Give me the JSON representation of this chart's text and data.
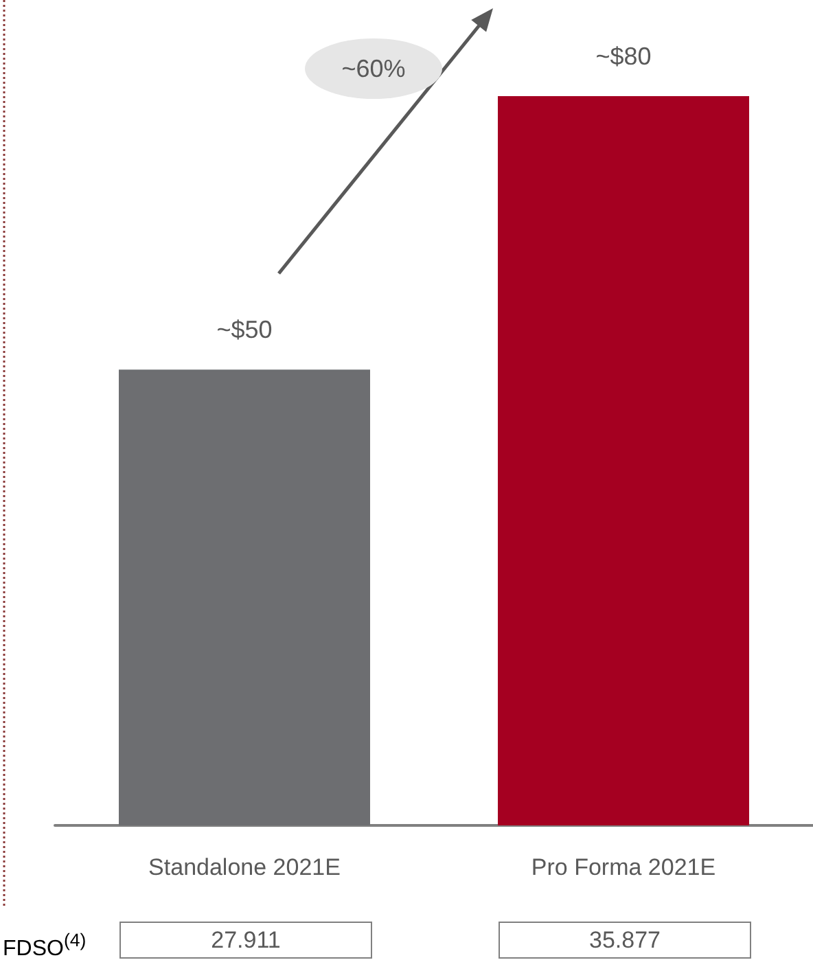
{
  "chart_data": {
    "type": "bar",
    "categories": [
      "Standalone 2021E",
      "Pro Forma 2021E"
    ],
    "values": [
      50,
      80
    ],
    "colors": [
      "#6d6e71",
      "#a50021"
    ],
    "value_labels": [
      "~$50",
      "~$80"
    ],
    "annotations": [
      "~60%",
      "FDSO$^{(4)}$",
      "27.911",
      "35.877"
    ]
  }
}
